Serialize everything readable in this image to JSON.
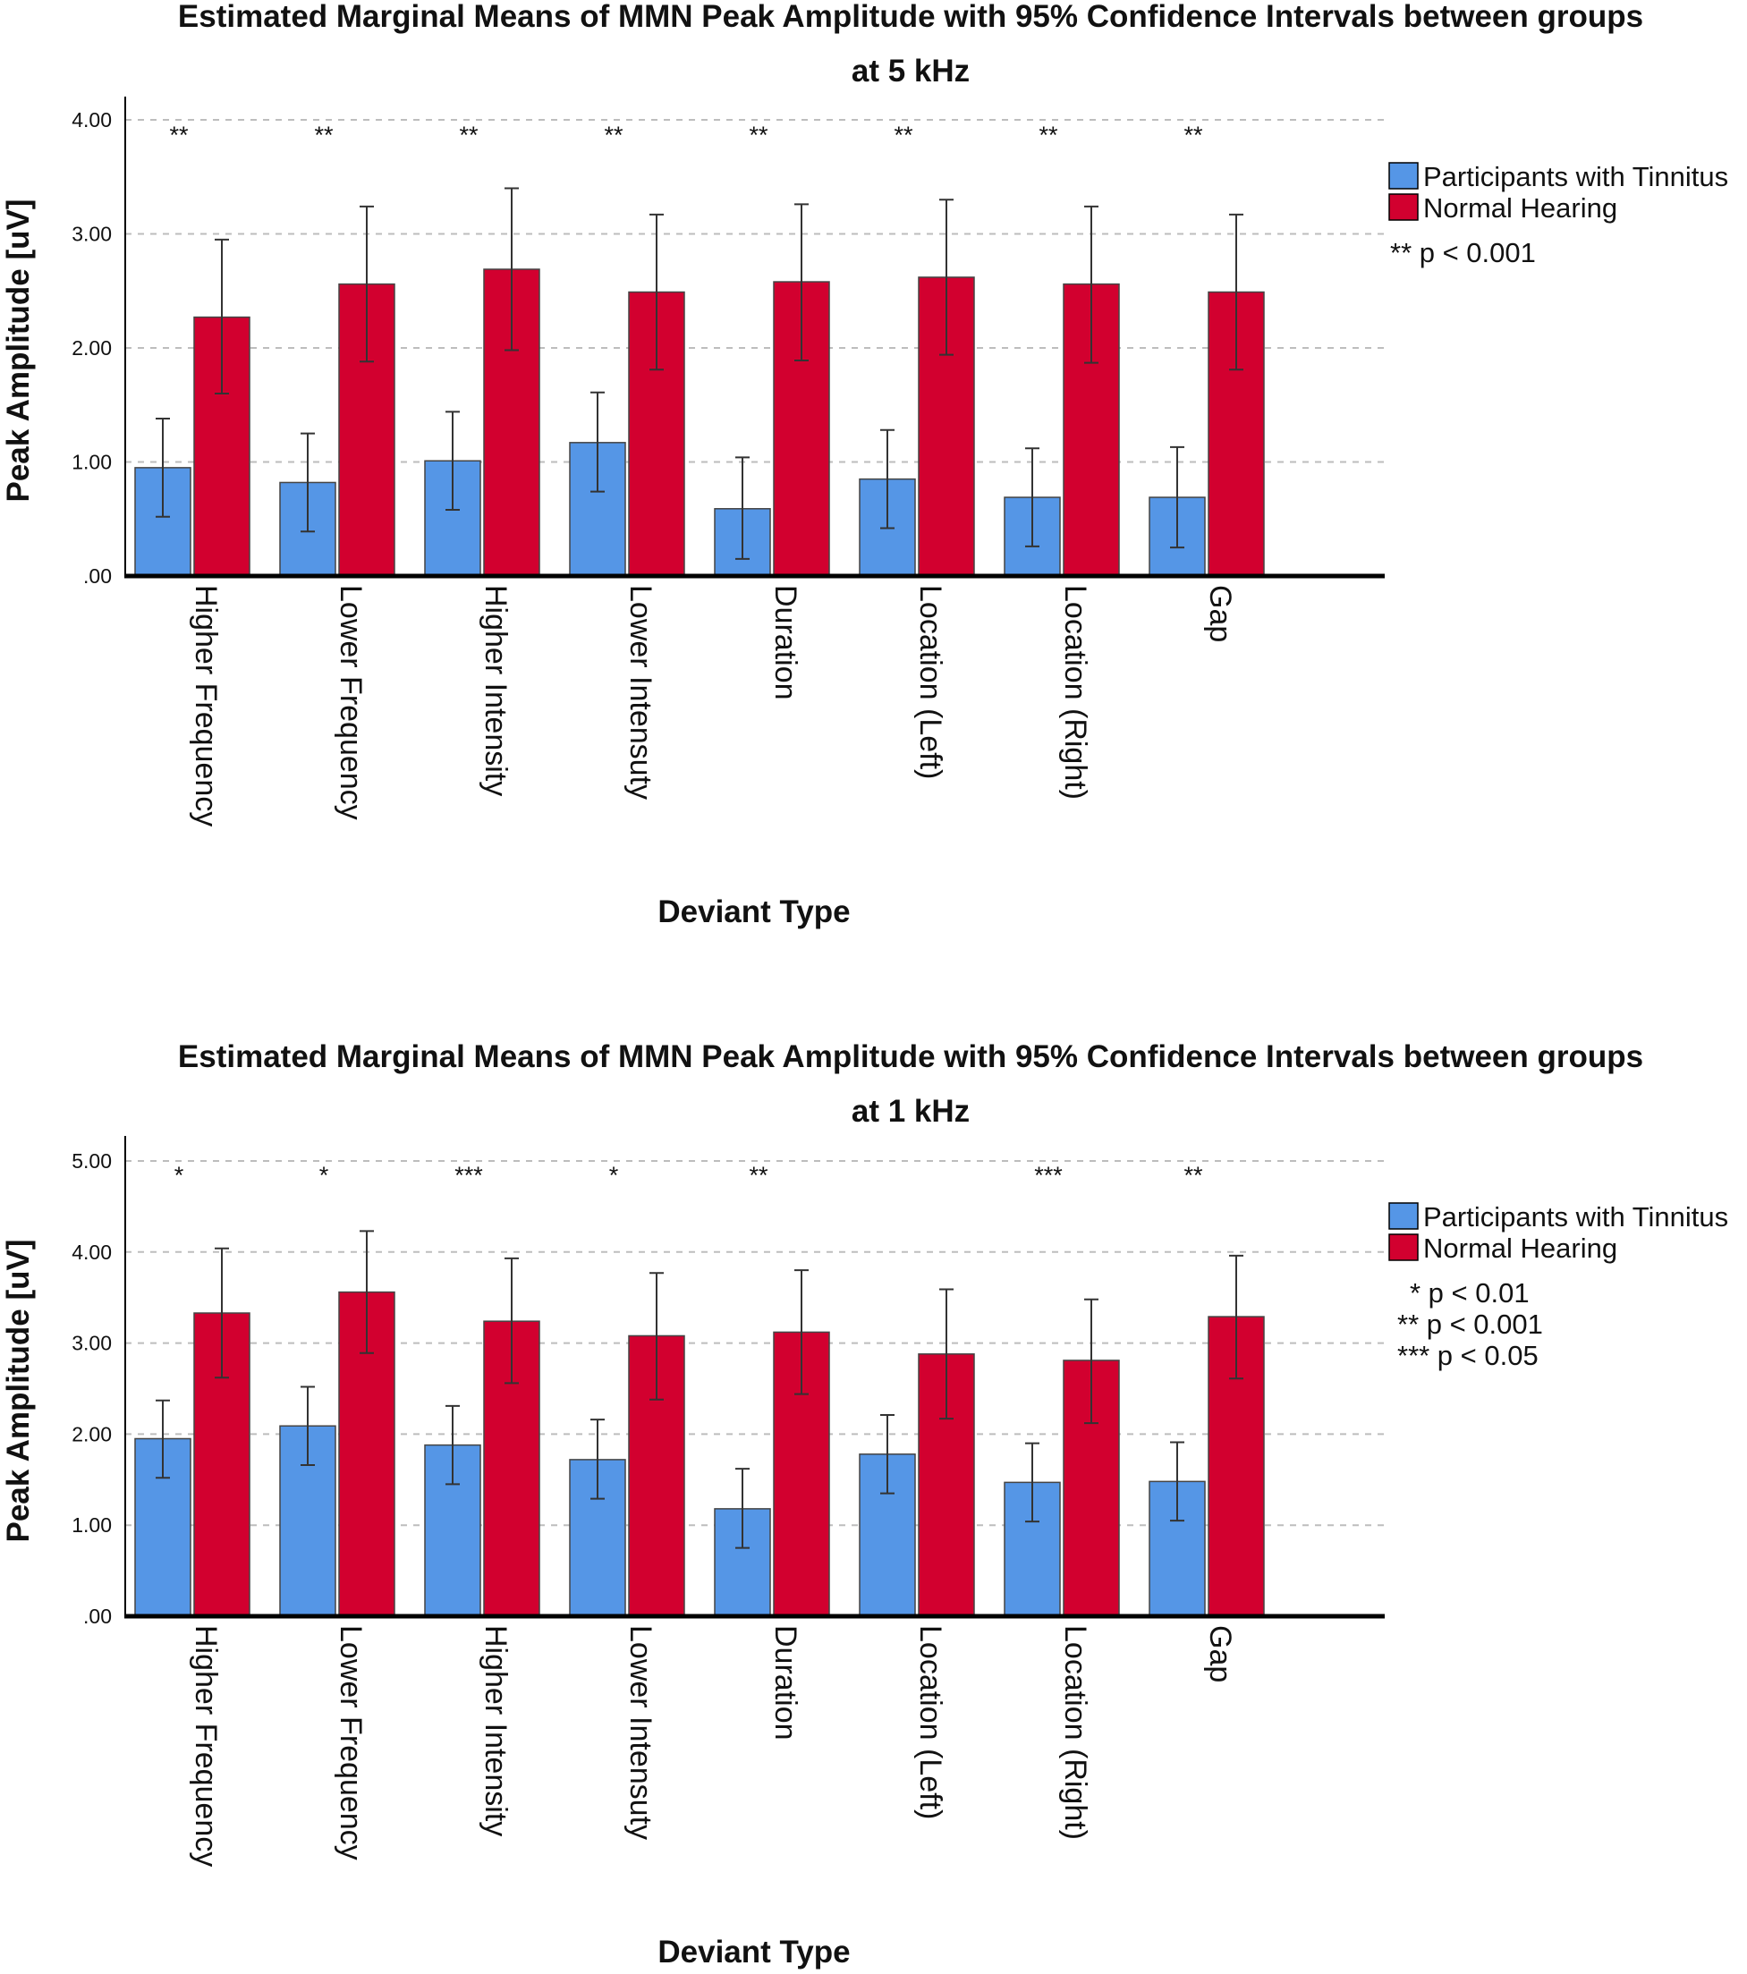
{
  "colors": {
    "tinnitus": "#5596e6",
    "normal": "#d2002f",
    "grid": "#bdbdbd",
    "axis": "#000000"
  },
  "chart_data": [
    {
      "type": "bar",
      "title_line1": "Estimated Marginal Means of MMN Peak Amplitude with 95% Confidence Intervals between groups",
      "title_line2": "at 5 kHz",
      "xlabel": "Deviant Type",
      "ylabel": "Peak Amplitude [uV]",
      "ylim": [
        0,
        4
      ],
      "yticks": [
        0,
        1,
        2,
        3,
        4
      ],
      "ytick_labels": [
        ".00",
        "1.00",
        "2.00",
        "3.00",
        "4.00"
      ],
      "grid": true,
      "legend_position": "right",
      "categories": [
        "Higher Frequency",
        "Lower Frequency",
        "Higher Intensity",
        "Lower Intensuty",
        "Duration",
        "Location (Left)",
        "Location (Right)",
        "Gap"
      ],
      "series": [
        {
          "name": "Participants with Tinnitus",
          "color_key": "tinnitus",
          "values": [
            0.95,
            0.82,
            1.01,
            1.17,
            0.59,
            0.85,
            0.69,
            0.69
          ],
          "ci_low": [
            0.52,
            0.39,
            0.58,
            0.74,
            0.15,
            0.42,
            0.26,
            0.25
          ],
          "ci_high": [
            1.38,
            1.25,
            1.44,
            1.61,
            1.04,
            1.28,
            1.12,
            1.13
          ]
        },
        {
          "name": "Normal Hearing",
          "color_key": "normal",
          "values": [
            2.27,
            2.56,
            2.69,
            2.49,
            2.58,
            2.62,
            2.56,
            2.49
          ],
          "ci_low": [
            1.6,
            1.88,
            1.98,
            1.81,
            1.89,
            1.94,
            1.87,
            1.81
          ],
          "ci_high": [
            2.95,
            3.24,
            3.4,
            3.17,
            3.26,
            3.3,
            3.24,
            3.17
          ]
        }
      ],
      "significance": [
        "**",
        "**",
        "**",
        "**",
        "**",
        "**",
        "**",
        "**"
      ],
      "notes": [
        "** p < 0.001"
      ]
    },
    {
      "type": "bar",
      "title_line1": "Estimated Marginal Means of MMN Peak Amplitude with 95% Confidence Intervals between groups",
      "title_line2": "at 1 kHz",
      "xlabel": "Deviant Type",
      "ylabel": "Peak Amplitude [uV]",
      "ylim": [
        0,
        5
      ],
      "yticks": [
        0,
        1,
        2,
        3,
        4,
        5
      ],
      "ytick_labels": [
        ".00",
        "1.00",
        "2.00",
        "3.00",
        "4.00",
        "5.00"
      ],
      "grid": true,
      "legend_position": "right",
      "categories": [
        "Higher Frequency",
        "Lower Frequency",
        "Higher Intensity",
        "Lower Intensuty",
        "Duration",
        "Location (Left)",
        "Location (Right)",
        "Gap"
      ],
      "series": [
        {
          "name": "Participants with Tinnitus",
          "color_key": "tinnitus",
          "values": [
            1.95,
            2.09,
            1.88,
            1.72,
            1.18,
            1.78,
            1.47,
            1.48
          ],
          "ci_low": [
            1.52,
            1.66,
            1.45,
            1.29,
            0.75,
            1.35,
            1.04,
            1.05
          ],
          "ci_high": [
            2.37,
            2.52,
            2.31,
            2.16,
            1.62,
            2.21,
            1.9,
            1.91
          ]
        },
        {
          "name": "Normal Hearing",
          "color_key": "normal",
          "values": [
            3.33,
            3.56,
            3.24,
            3.08,
            3.12,
            2.88,
            2.81,
            3.29
          ],
          "ci_low": [
            2.62,
            2.89,
            2.56,
            2.38,
            2.44,
            2.17,
            2.12,
            2.61
          ],
          "ci_high": [
            4.04,
            4.23,
            3.93,
            3.77,
            3.8,
            3.59,
            3.48,
            3.96
          ]
        }
      ],
      "significance": [
        "*",
        "*",
        "***",
        "*",
        "**",
        "",
        "***",
        "**"
      ],
      "notes": [
        "* p < 0.01",
        "** p < 0.001",
        "*** p < 0.05"
      ]
    }
  ]
}
